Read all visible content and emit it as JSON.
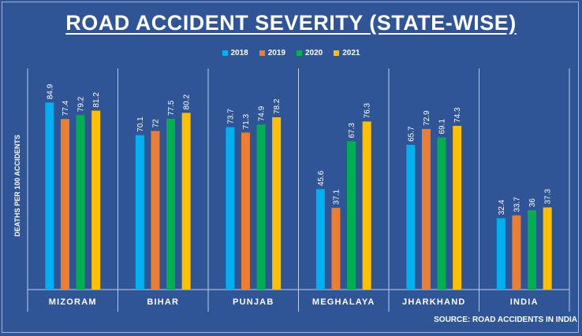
{
  "chart_data": {
    "type": "bar",
    "title": "ROAD ACCIDENT SEVERITY (STATE-WISE)",
    "ylabel": "DEATHS PER 100 ACCIDENTS",
    "xlabel": "",
    "source": "SOURCE: ROAD ACCIDENTS IN INDIA",
    "categories": [
      "MIZORAM",
      "BIHAR",
      "PUNJAB",
      "MEGHALAYA",
      "JHARKHAND",
      "INDIA"
    ],
    "series": [
      {
        "name": "2018",
        "color": "#00b0f0",
        "values": [
          84.9,
          70.1,
          73.7,
          45.6,
          65.7,
          32.4
        ]
      },
      {
        "name": "2019",
        "color": "#ed7d31",
        "values": [
          77.4,
          72,
          71.3,
          37.1,
          72.9,
          33.7
        ]
      },
      {
        "name": "2020",
        "color": "#00b050",
        "values": [
          79.2,
          77.5,
          74.9,
          67.3,
          69.1,
          36
        ]
      },
      {
        "name": "2021",
        "color": "#ffc000",
        "values": [
          81.2,
          80.2,
          78.2,
          76.3,
          74.3,
          37.3
        ]
      }
    ],
    "ylim": [
      0,
      100
    ],
    "grid": false,
    "legend_position": "top-center"
  }
}
